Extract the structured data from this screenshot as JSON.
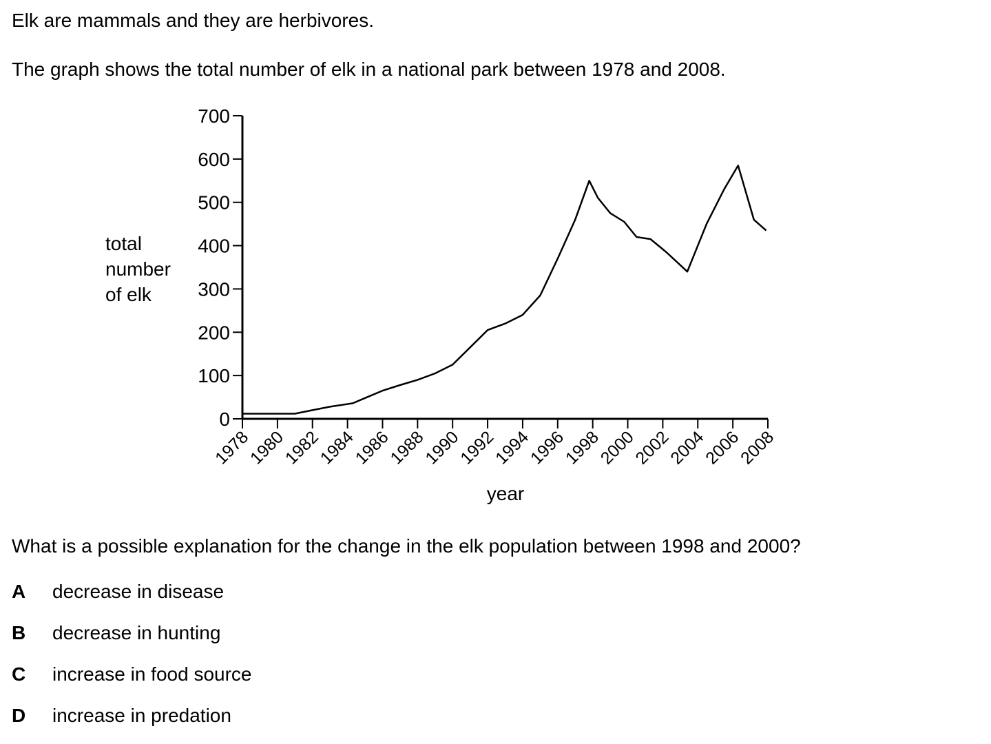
{
  "intro_text": "Elk are mammals and they are herbivores.",
  "graph_description": "The graph shows the total number of elk in a national park between 1978 and 2008.",
  "question": "What is a possible explanation for the change in the elk population between 1998 and 2000?",
  "options": [
    {
      "letter": "A",
      "text": "decrease in disease"
    },
    {
      "letter": "B",
      "text": "decrease in hunting"
    },
    {
      "letter": "C",
      "text": "increase in food source"
    },
    {
      "letter": "D",
      "text": "increase in predation"
    }
  ],
  "chart_data": {
    "type": "line",
    "xlabel": "year",
    "ylabel_lines": [
      "total",
      "number",
      "of elk"
    ],
    "xlim": [
      1978,
      2008
    ],
    "ylim": [
      0,
      700
    ],
    "x_ticks": [
      1978,
      1980,
      1982,
      1984,
      1986,
      1988,
      1990,
      1992,
      1994,
      1996,
      1998,
      2000,
      2002,
      2004,
      2006,
      2008
    ],
    "y_ticks": [
      0,
      100,
      200,
      300,
      400,
      500,
      600,
      700
    ],
    "grid": false,
    "series": [
      {
        "x": [
          1978,
          1979,
          1980,
          1981,
          1982,
          1983,
          1984.3,
          1985,
          1986,
          1987,
          1988,
          1989,
          1990,
          1991,
          1992,
          1993,
          1994,
          1995,
          1996,
          1997,
          1997.8,
          1998.3,
          1999,
          1999.8,
          2000.5,
          2001.3,
          2002.2,
          2003.4,
          2004.5,
          2005.5,
          2006.3,
          2007.2,
          2007.9
        ],
        "y": [
          12,
          12,
          12,
          12,
          20,
          28,
          36,
          48,
          65,
          78,
          90,
          105,
          125,
          165,
          205,
          220,
          240,
          285,
          370,
          460,
          550,
          510,
          475,
          455,
          420,
          415,
          385,
          340,
          450,
          530,
          585,
          460,
          435
        ]
      }
    ]
  }
}
